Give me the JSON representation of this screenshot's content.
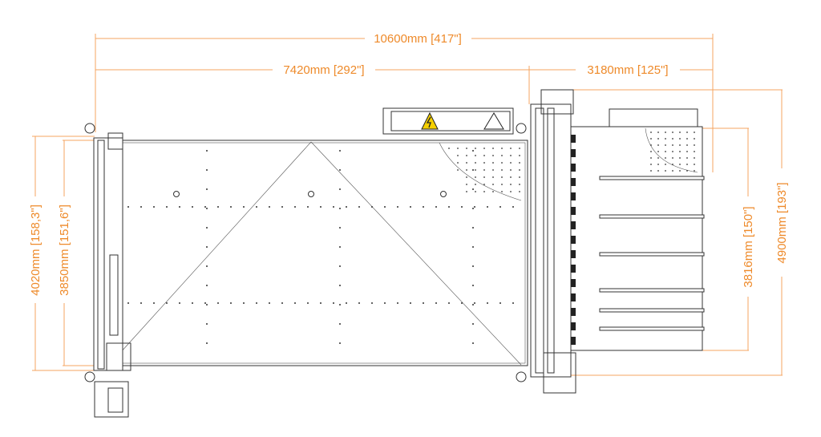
{
  "dimensions": {
    "overall_length": "10600mm [417\"]",
    "table_length": "7420mm [292\"]",
    "loader_length": "3180mm [125\"]",
    "overall_width_left": "4020mm [158,3\"]",
    "table_width": "3850mm [151,6\"]",
    "loader_table_width": "3816mm [150\"]",
    "overall_width_right": "4900mm [193\"]"
  },
  "colors": {
    "dimension": "#ee8a2a",
    "drawing": "#333333",
    "warning": "#f5d000"
  },
  "icons": [
    "high-voltage-warning-icon",
    "caution-triangle-icon"
  ]
}
